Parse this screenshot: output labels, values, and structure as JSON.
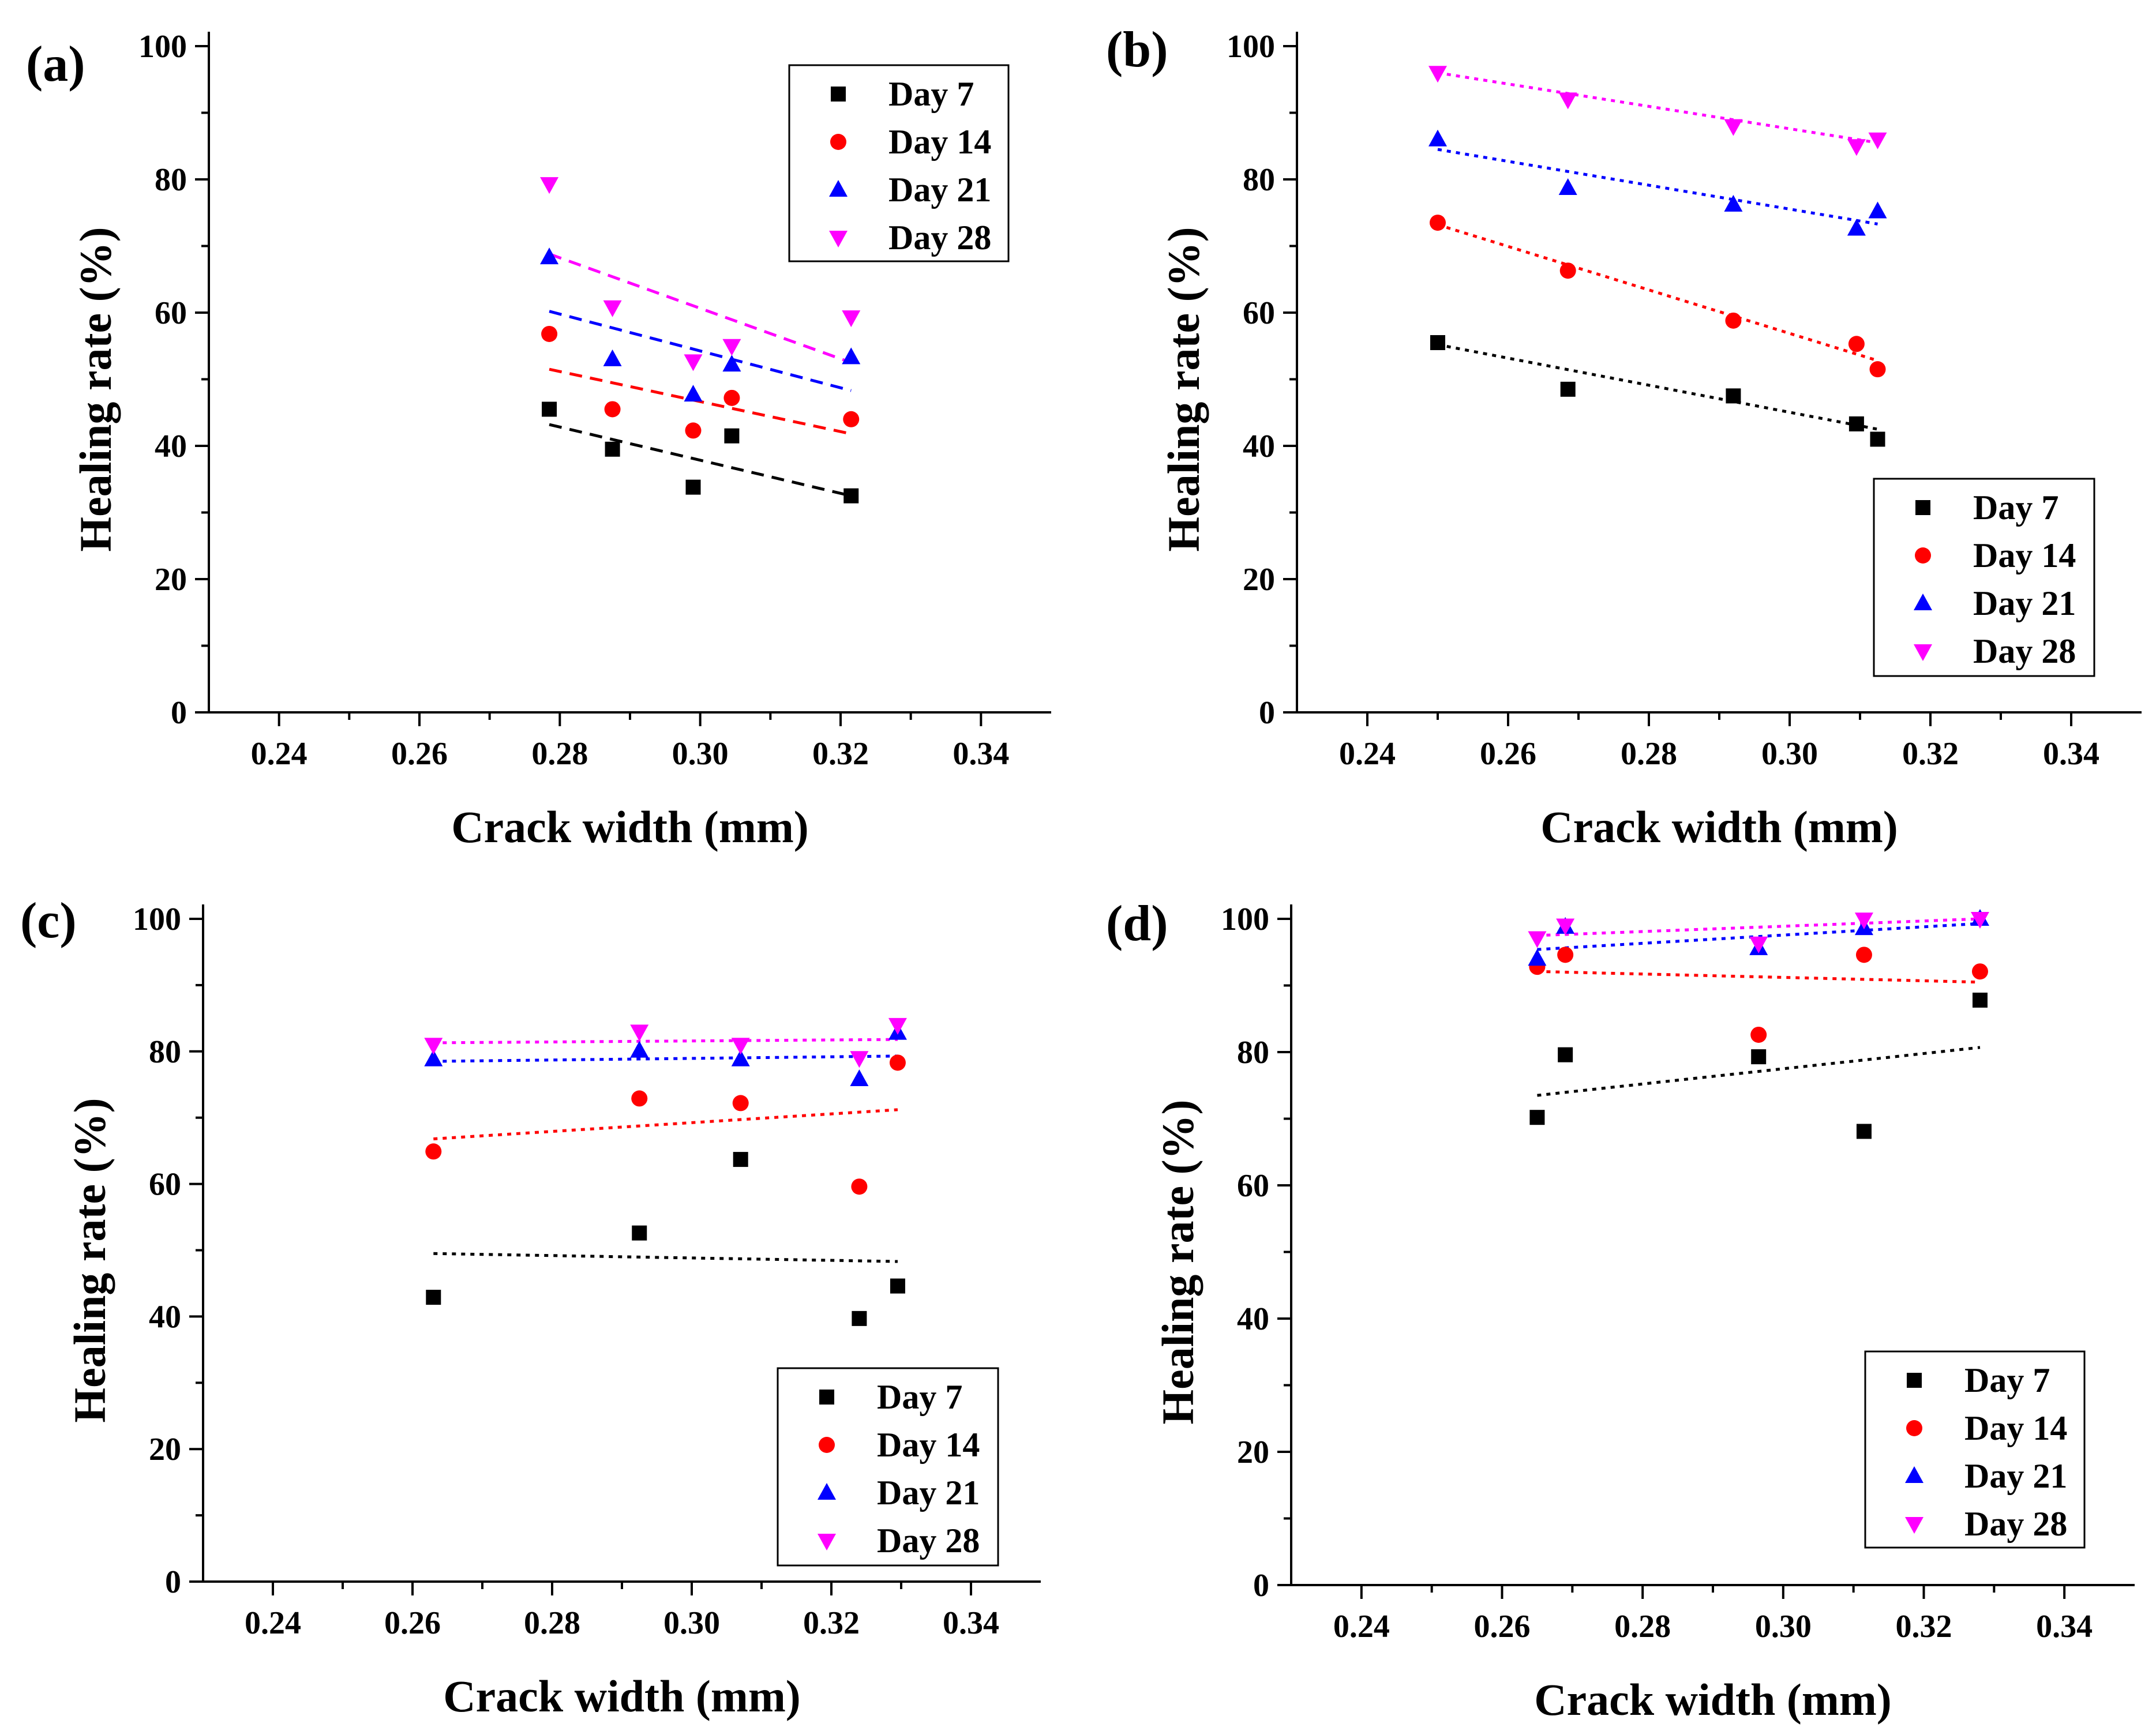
{
  "figure": {
    "xlabel": "Crack width (mm)",
    "ylabel": "Healing rate (%)",
    "colors": {
      "Day 7": "#000000",
      "Day 14": "#ff0000",
      "Day 21": "#0000ff",
      "Day 28": "#ff00ff"
    },
    "markers": {
      "Day 7": "square",
      "Day 14": "circle",
      "Day 21": "triangle-up",
      "Day 28": "triangle-down"
    }
  },
  "chart_data": [
    {
      "type": "scatter",
      "panel_label": "(a)",
      "xlabel": "Crack width (mm)",
      "ylabel": "Healing rate (%)",
      "xlim": [
        0.23,
        0.35
      ],
      "ylim": [
        0,
        100
      ],
      "xticks": [
        "0.24",
        "0.26",
        "0.28",
        "0.30",
        "0.32",
        "0.34"
      ],
      "yticks": [
        "0",
        "20",
        "40",
        "60",
        "80",
        "100"
      ],
      "legend": [
        "Day 7",
        "Day 14",
        "Day 21",
        "Day 28"
      ],
      "legend_position": "top-right",
      "trend_style": "dashed",
      "x": [
        0.2785,
        0.2875,
        0.299,
        0.3045,
        0.3215
      ],
      "series": [
        {
          "name": "Day 7",
          "values": [
            45.5,
            39.5,
            33.8,
            41.5,
            32.5
          ],
          "trend": [
            43.2,
            32.5
          ]
        },
        {
          "name": "Day 14",
          "values": [
            56.8,
            45.5,
            42.3,
            47.2,
            44.0
          ],
          "trend": [
            51.5,
            41.8
          ]
        },
        {
          "name": "Day 21",
          "values": [
            68.3,
            53.0,
            47.7,
            52.2,
            53.3
          ],
          "trend": [
            60.2,
            48.3
          ]
        },
        {
          "name": "Day 28",
          "values": [
            79.3,
            60.8,
            52.7,
            55.0,
            59.3
          ],
          "trend": [
            68.8,
            52.5
          ]
        }
      ]
    },
    {
      "type": "scatter",
      "panel_label": "(b)",
      "xlabel": "Crack width (mm)",
      "ylabel": "Healing rate (%)",
      "xlim": [
        0.23,
        0.35
      ],
      "ylim": [
        0,
        100
      ],
      "xticks": [
        "0.24",
        "0.26",
        "0.28",
        "0.30",
        "0.32",
        "0.34"
      ],
      "yticks": [
        "0",
        "20",
        "40",
        "60",
        "80",
        "100"
      ],
      "legend": [
        "Day 7",
        "Day 14",
        "Day 21",
        "Day 28"
      ],
      "legend_position": "bottom-right",
      "trend_style": "dotted",
      "x": [
        0.25,
        0.2685,
        0.292,
        0.3095,
        0.3125
      ],
      "series": [
        {
          "name": "Day 7",
          "values": [
            55.5,
            48.5,
            47.5,
            43.3,
            41.0
          ],
          "trend": [
            55.2,
            42.5
          ]
        },
        {
          "name": "Day 14",
          "values": [
            73.5,
            66.3,
            58.8,
            55.3,
            51.5
          ],
          "trend": [
            73.2,
            52.8
          ]
        },
        {
          "name": "Day 21",
          "values": [
            86.0,
            78.7,
            76.2,
            72.6,
            75.2
          ],
          "trend": [
            84.5,
            73.3
          ]
        },
        {
          "name": "Day 28",
          "values": [
            96.0,
            92.0,
            88.0,
            85.0,
            86.0
          ],
          "trend": [
            96.0,
            85.5
          ]
        }
      ]
    },
    {
      "type": "scatter",
      "panel_label": "(c)",
      "xlabel": "Crack width (mm)",
      "ylabel": "Healing rate (%)",
      "xlim": [
        0.23,
        0.35
      ],
      "ylim": [
        0,
        100
      ],
      "xticks": [
        "0.24",
        "0.26",
        "0.28",
        "0.30",
        "0.32",
        "0.34"
      ],
      "yticks": [
        "0",
        "20",
        "40",
        "60",
        "80",
        "100"
      ],
      "legend": [
        "Day 7",
        "Day 14",
        "Day 21",
        "Day 28"
      ],
      "legend_position": "bottom-right",
      "trend_style": "dotted",
      "x": [
        0.263,
        0.2925,
        0.307,
        0.324,
        0.3295
      ],
      "series": [
        {
          "name": "Day 7",
          "values": [
            42.9,
            52.6,
            63.7,
            39.7,
            44.6
          ],
          "trend": [
            49.5,
            48.3
          ]
        },
        {
          "name": "Day 14",
          "values": [
            64.9,
            72.9,
            72.2,
            59.6,
            78.3
          ],
          "trend": [
            66.8,
            71.2
          ]
        },
        {
          "name": "Day 21",
          "values": [
            78.8,
            80.1,
            78.8,
            75.8,
            82.8
          ],
          "trend": [
            78.5,
            79.3
          ]
        },
        {
          "name": "Day 28",
          "values": [
            81.0,
            83.0,
            81.0,
            79.0,
            84.0
          ],
          "trend": [
            81.3,
            81.8
          ]
        }
      ]
    },
    {
      "type": "scatter",
      "panel_label": "(d)",
      "xlabel": "Crack width (mm)",
      "ylabel": "Healing rate (%)",
      "xlim": [
        0.23,
        0.35
      ],
      "ylim": [
        0,
        100
      ],
      "xticks": [
        "0.24",
        "0.26",
        "0.28",
        "0.30",
        "0.32",
        "0.34"
      ],
      "yticks": [
        "0",
        "20",
        "40",
        "60",
        "80",
        "100"
      ],
      "legend": [
        "Day 7",
        "Day 14",
        "Day 21",
        "Day 28"
      ],
      "legend_position": "bottom-right",
      "trend_style": "dotted",
      "x": [
        0.265,
        0.269,
        0.2965,
        0.3115,
        0.328
      ],
      "series": [
        {
          "name": "Day 7",
          "values": [
            70.2,
            79.6,
            79.3,
            68.1,
            87.8
          ],
          "trend": [
            73.5,
            80.7
          ]
        },
        {
          "name": "Day 14",
          "values": [
            92.8,
            94.6,
            82.6,
            94.6,
            92.1
          ],
          "trend": [
            92.1,
            90.5
          ]
        },
        {
          "name": "Day 21",
          "values": [
            94.0,
            98.8,
            95.6,
            98.6,
            100.0
          ],
          "trend": [
            95.4,
            99.3
          ]
        },
        {
          "name": "Day 28",
          "values": [
            97.1,
            99.0,
            96.3,
            99.9,
            100.0
          ],
          "trend": [
            97.5,
            100.0
          ]
        }
      ]
    }
  ]
}
